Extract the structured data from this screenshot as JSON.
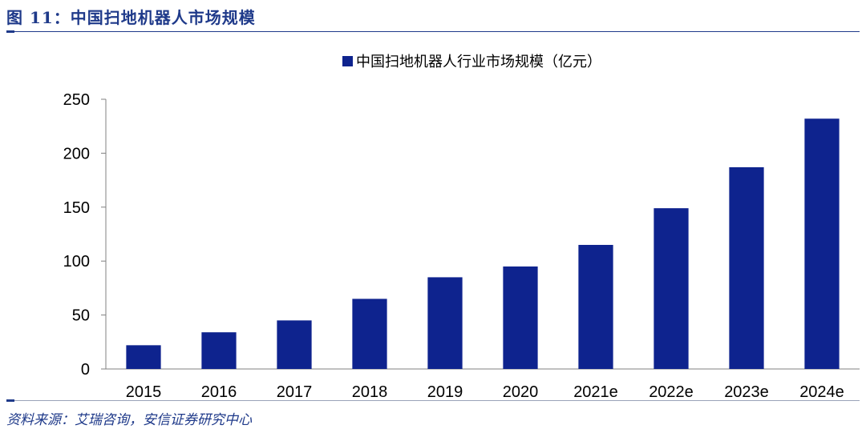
{
  "figure": {
    "title": "图 11：中国扫地机器人市场规模",
    "source": "资料来源：艾瑞咨询，安信证券研究中心"
  },
  "colors": {
    "bar": "#0e238e",
    "title": "#1f3a8a"
  },
  "chart_data": {
    "type": "bar",
    "categories": [
      "2015",
      "2016",
      "2017",
      "2018",
      "2019",
      "2020",
      "2021e",
      "2022e",
      "2023e",
      "2024e"
    ],
    "series": [
      {
        "name": "中国扫地机器人行业市场规模（亿元）",
        "values": [
          22,
          34,
          45,
          65,
          85,
          95,
          115,
          149,
          187,
          232
        ]
      }
    ],
    "ylim": [
      0,
      250
    ],
    "yticks": [
      "0",
      "50",
      "100",
      "150",
      "200",
      "250"
    ],
    "legend_position": "top-center",
    "grid": false
  }
}
